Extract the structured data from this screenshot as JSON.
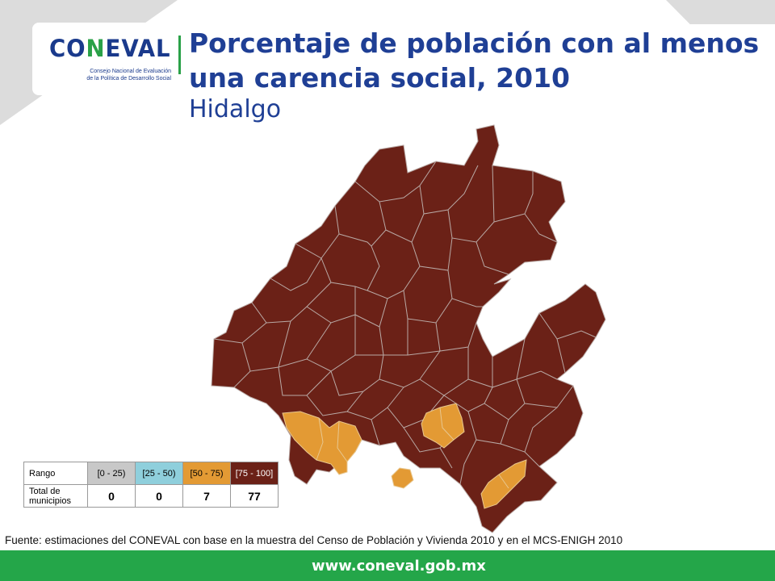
{
  "header": {
    "logo_text_a": "CO",
    "logo_text_b": "N",
    "logo_text_c": "EVAL",
    "logo_subtitle_1": "Consejo Nacional de Evaluación",
    "logo_subtitle_2": "de la Política de Desarrollo Social",
    "title": "Porcentaje de población con al menos una carencia social, 2010",
    "subtitle": "Hidalgo"
  },
  "colors": {
    "range_0_25": "#c8c8c8",
    "range_25_50": "#8fcfdc",
    "range_50_75": "#e39a34",
    "range_75_100": "#6b2117",
    "accent_green": "#24a649",
    "title_blue": "#1f3f95"
  },
  "legend": {
    "row_range_label": "Rango",
    "row_total_label": "Total de municipios",
    "categories": [
      {
        "label": "[0 - 25)",
        "count": "0",
        "color": "#c8c8c8"
      },
      {
        "label": "[25 - 50)",
        "count": "0",
        "color": "#8fcfdc"
      },
      {
        "label": "[50 - 75)",
        "count": "7",
        "color": "#e39a34"
      },
      {
        "label": "[75 - 100]",
        "count": "77",
        "color": "#6b2117"
      }
    ]
  },
  "source": "Fuente: estimaciones del CONEVAL con base en la muestra del Censo de Población y Vivienda 2010 y en el MCS-ENIGH 2010",
  "footer": {
    "url": "www.coneval.gob.mx"
  }
}
